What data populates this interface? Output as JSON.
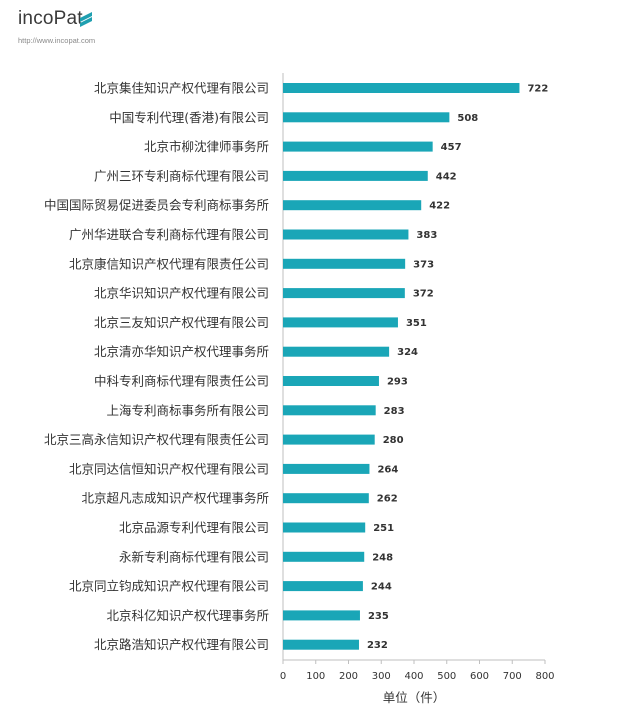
{
  "logo": {
    "text": "incoPat",
    "url": "http://www.incopat.com",
    "accent_color": "#1f9fb0"
  },
  "chart_data": {
    "type": "bar",
    "orientation": "horizontal",
    "categories": [
      "北京集佳知识产权代理有限公司",
      "中国专利代理(香港)有限公司",
      "北京市柳沈律师事务所",
      "广州三环专利商标代理有限公司",
      "中国国际贸易促进委员会专利商标事务所",
      "广州华进联合专利商标代理有限公司",
      "北京康信知识产权代理有限责任公司",
      "北京华识知识产权代理有限公司",
      "北京三友知识产权代理有限公司",
      "北京清亦华知识产权代理事务所",
      "中科专利商标代理有限责任公司",
      "上海专利商标事务所有限公司",
      "北京三高永信知识产权代理有限责任公司",
      "北京同达信恒知识产权代理有限公司",
      "北京超凡志成知识产权代理事务所",
      "北京品源专利代理有限公司",
      "永新专利商标代理有限公司",
      "北京同立钧成知识产权代理有限公司",
      "北京科亿知识产权代理事务所",
      "北京路浩知识产权代理有限公司"
    ],
    "values": [
      722,
      508,
      457,
      442,
      422,
      383,
      373,
      372,
      351,
      324,
      293,
      283,
      280,
      264,
      262,
      251,
      248,
      244,
      235,
      232
    ],
    "xlabel": "单位（件）",
    "ylabel": "",
    "title": "",
    "xlim": [
      0,
      800
    ],
    "xticks": [
      0,
      100,
      200,
      300,
      400,
      500,
      600,
      700,
      800
    ],
    "grid": false,
    "bar_color": "#1aa6b7",
    "data_labels": true
  }
}
